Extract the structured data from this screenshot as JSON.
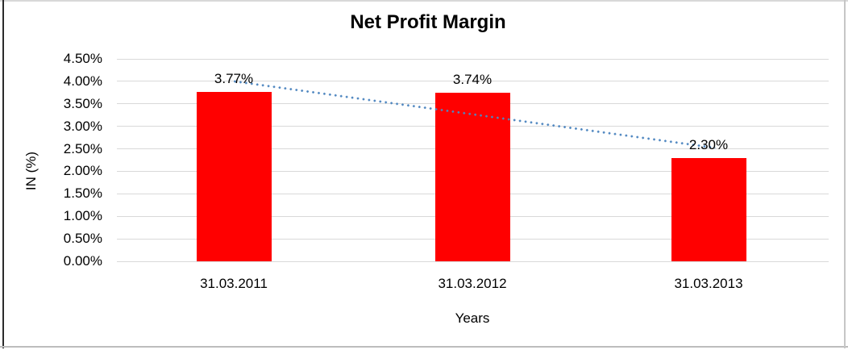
{
  "chart_data": {
    "type": "bar",
    "title": "Net Profit Margin",
    "xlabel": "Years",
    "ylabel": "IN (%)",
    "categories": [
      "31.03.2011",
      "31.03.2012",
      "31.03.2013"
    ],
    "values": [
      3.77,
      3.74,
      2.3
    ],
    "data_labels": [
      "3.77%",
      "3.74%",
      "2.30%"
    ],
    "ylim": [
      0,
      4.5
    ],
    "ytick_step": 0.5,
    "ytick_labels": [
      "0.00%",
      "0.50%",
      "1.00%",
      "1.50%",
      "2.00%",
      "2.50%",
      "3.00%",
      "3.50%",
      "4.00%",
      "4.50%"
    ],
    "grid": true,
    "legend": "none",
    "bar_color": "#FF0000",
    "gridline_color": "#D9D9D9",
    "text_color": "#000000",
    "trendline": {
      "type": "linear",
      "style": "dotted",
      "color": "#4E86C0",
      "start_value": 4.0,
      "end_value": 2.54
    }
  }
}
